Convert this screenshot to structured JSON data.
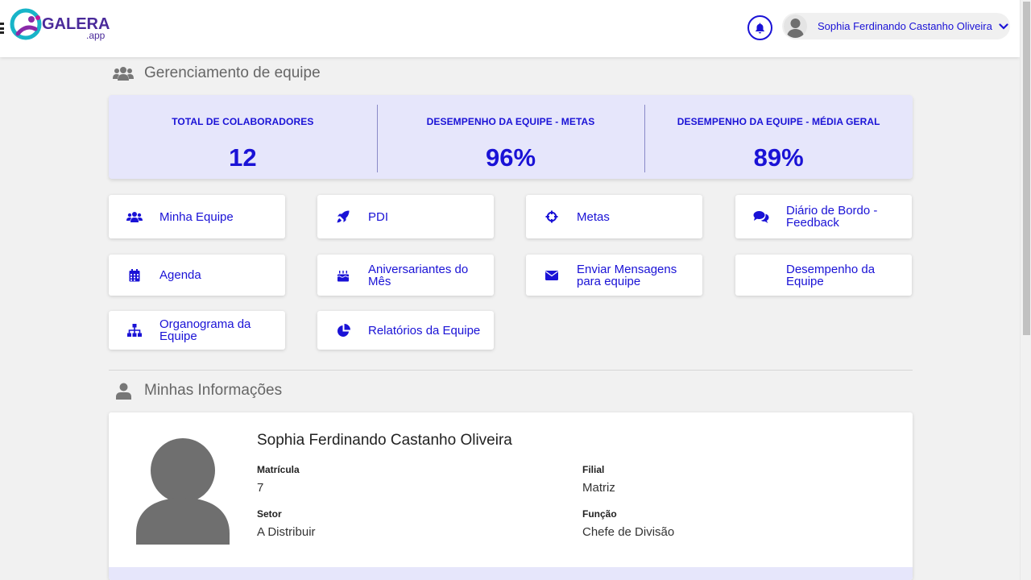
{
  "header": {
    "logo_text": "GALERA",
    "logo_sub": ".app",
    "user_name": "Sophia Ferdinando Castanho Oliveira"
  },
  "team_section": {
    "title": "Gerenciamento de equipe"
  },
  "stats": [
    {
      "label": "TOTAL DE COLABORADORES",
      "value": "12"
    },
    {
      "label": "DESEMPENHO DA EQUIPE - METAS",
      "value": "96%"
    },
    {
      "label": "DESEMPENHO DA EQUIPE - MÉDIA GERAL",
      "value": "89%"
    }
  ],
  "actions": [
    {
      "label": "Minha Equipe",
      "icon": "users-icon"
    },
    {
      "label": "PDI",
      "icon": "rocket-icon"
    },
    {
      "label": "Metas",
      "icon": "crosshairs-icon"
    },
    {
      "label": "Diário de Bordo - Feedback",
      "icon": "comments-icon"
    },
    {
      "label": "Agenda",
      "icon": "calendar-icon"
    },
    {
      "label": "Aniversariantes do Mês",
      "icon": "birthday-cake-icon"
    },
    {
      "label": "Enviar Mensagens para equipe",
      "icon": "envelope-icon"
    },
    {
      "label": "Desempenho da Equipe",
      "icon": ""
    },
    {
      "label": "Organograma da Equipe",
      "icon": "sitemap-icon"
    },
    {
      "label": "Relatórios da Equipe",
      "icon": "pie-chart-icon"
    }
  ],
  "info_section": {
    "title": "Minhas Informações",
    "name": "Sophia Ferdinando Castanho Oliveira",
    "fields": [
      {
        "label": "Matrícula",
        "value": "7"
      },
      {
        "label": "Filial",
        "value": "Matriz"
      },
      {
        "label": "Setor",
        "value": "A Distribuir"
      },
      {
        "label": "Função",
        "value": "Chefe de Divisão"
      }
    ]
  },
  "colors": {
    "accent": "#1a12d6",
    "panel": "#e6e6fb",
    "background": "#f1f1f1"
  }
}
